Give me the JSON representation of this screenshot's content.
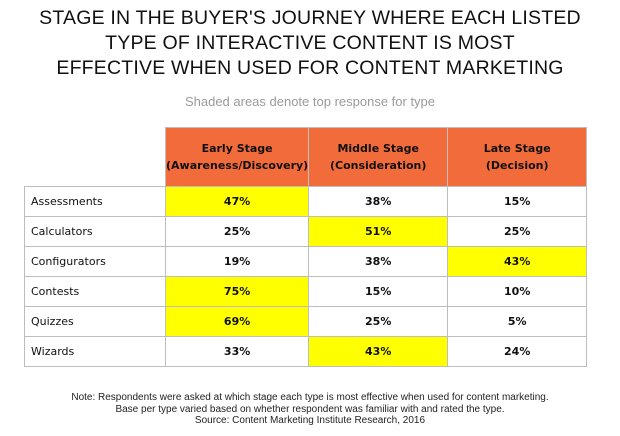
{
  "chart_data": {
    "type": "table",
    "title_lines": [
      "STAGE IN THE BUYER'S JOURNEY WHERE EACH LISTED",
      "TYPE OF INTERACTIVE CONTENT IS MOST",
      "EFFECTIVE WHEN USED FOR CONTENT MARKETING"
    ],
    "subtitle": "Shaded areas denote top response for type",
    "columns": [
      {
        "line1": "Early Stage",
        "line2": "(Awareness/Discovery)"
      },
      {
        "line1": "Middle Stage",
        "line2": "(Consideration)"
      },
      {
        "line1": "Late Stage",
        "line2": "(Decision)"
      }
    ],
    "rows": [
      {
        "label": "Assessments",
        "values": [
          "47%",
          "38%",
          "15%"
        ],
        "top": 0
      },
      {
        "label": "Calculators",
        "values": [
          "25%",
          "51%",
          "25%"
        ],
        "top": 1
      },
      {
        "label": "Configurators",
        "values": [
          "19%",
          "38%",
          "43%"
        ],
        "top": 2
      },
      {
        "label": "Contests",
        "values": [
          "75%",
          "15%",
          "10%"
        ],
        "top": 0
      },
      {
        "label": "Quizzes",
        "values": [
          "69%",
          "25%",
          "5%"
        ],
        "top": 0
      },
      {
        "label": "Wizards",
        "values": [
          "33%",
          "43%",
          "24%"
        ],
        "top": 1
      }
    ],
    "colors": {
      "header": "#f26b3a",
      "highlight": "#ffff00",
      "border": "#bdbdbd"
    },
    "footnote": [
      "Note: Respondents were asked at which stage each type is most effective when used for content marketing.",
      "Base per type varied based on whether respondent was familiar with and rated the type.",
      "Source: Content Marketing Institute Research, 2016"
    ]
  }
}
